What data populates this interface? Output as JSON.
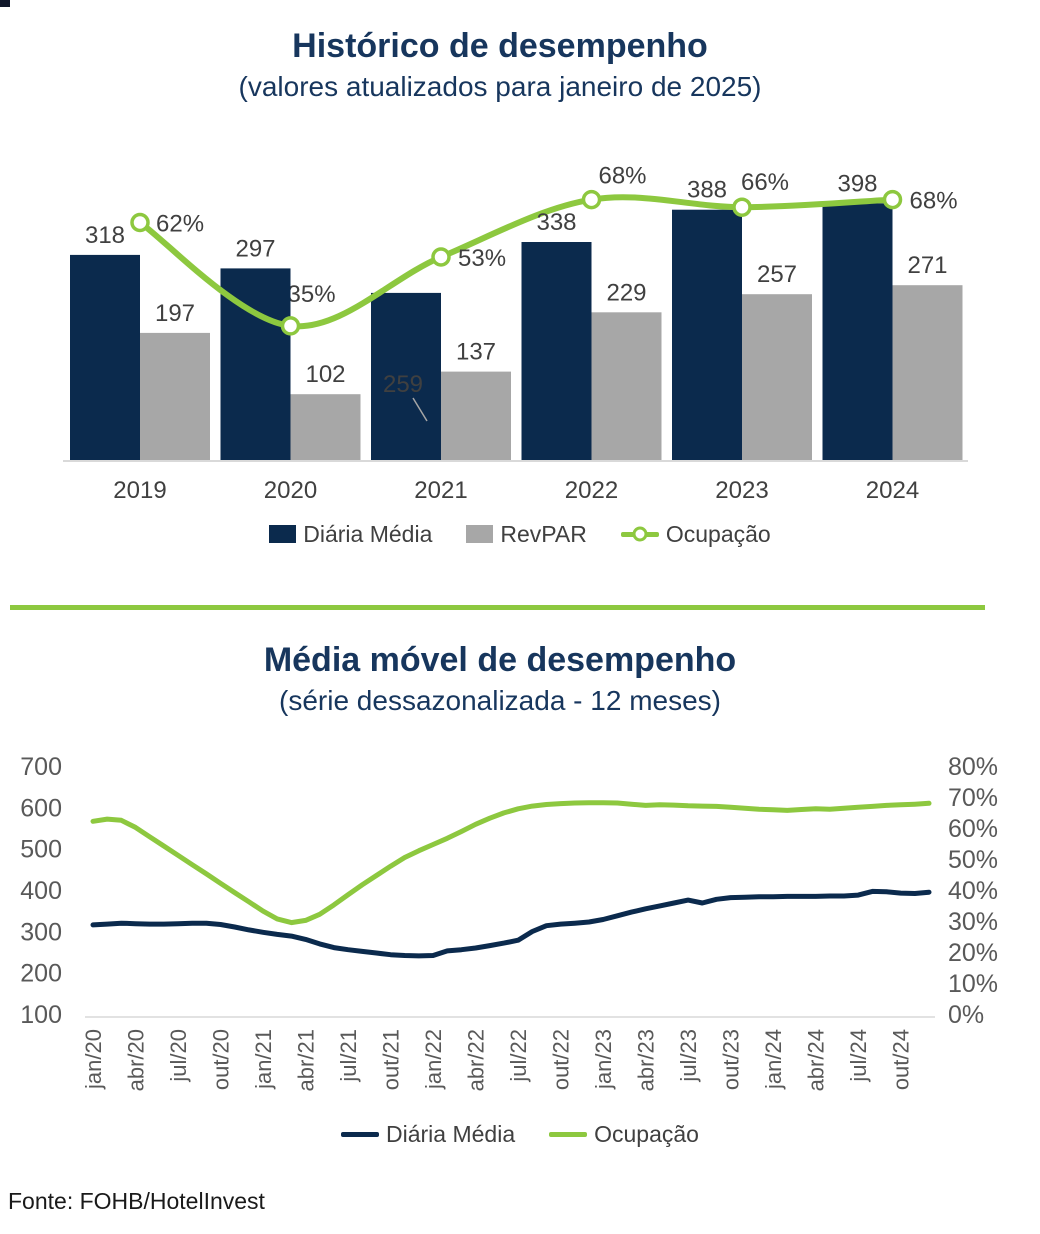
{
  "footer": {
    "text": "Fonte: FOHB/HotelInvest"
  },
  "colors": {
    "navy": "#0b2a4d",
    "gray": "#a7a7a7",
    "green": "#8dc83f",
    "title_navy": "#17365d",
    "data_label": "#404040",
    "tick_label": "#595959",
    "axis_line": "#d9d9d9"
  },
  "chart_data": [
    {
      "type": "bar",
      "title": "Histórico de desempenho",
      "subtitle": "(valores atualizados para janeiro de 2025)",
      "categories": [
        "2019",
        "2020",
        "2021",
        "2022",
        "2023",
        "2024"
      ],
      "series": [
        {
          "name": "Diária Média",
          "type": "bar",
          "axis": "left",
          "values": [
            318,
            297,
            259,
            338,
            388,
            398
          ]
        },
        {
          "name": "RevPAR",
          "type": "bar",
          "axis": "left",
          "values": [
            197,
            102,
            137,
            229,
            257,
            271
          ]
        },
        {
          "name": "Ocupação",
          "type": "line",
          "axis": "percent",
          "values": [
            62,
            35,
            53,
            68,
            66,
            68
          ],
          "label_suffix": "%"
        }
      ],
      "legend": [
        "Diária Média",
        "RevPAR",
        "Ocupação"
      ],
      "grid": false,
      "legend_position": "bottom"
    },
    {
      "type": "line",
      "title": "Média móvel de desempenho",
      "subtitle": "(série dessazonalizada - 12 meses)",
      "x_start": "jan/20",
      "x_frequency": "monthly",
      "x_tick_labels": [
        "jan/20",
        "abr/20",
        "jul/20",
        "out/20",
        "jan/21",
        "abr/21",
        "jul/21",
        "out/21",
        "jan/22",
        "abr/22",
        "jul/22",
        "out/22",
        "jan/23",
        "abr/23",
        "jul/23",
        "out/23",
        "jan/24",
        "abr/24",
        "jul/24",
        "out/24"
      ],
      "left_axis": {
        "min": 100,
        "max": 700,
        "ticks": [
          700,
          600,
          500,
          400,
          300,
          200,
          100
        ]
      },
      "right_axis": {
        "min": 0,
        "max": 80,
        "ticks": [
          "80%",
          "70%",
          "60%",
          "50%",
          "40%",
          "30%",
          "20%",
          "10%",
          "0%"
        ]
      },
      "series": [
        {
          "name": "Diária Média",
          "axis": "left",
          "values": [
            318,
            320,
            322,
            321,
            320,
            320,
            321,
            322,
            322,
            319,
            313,
            306,
            300,
            295,
            291,
            283,
            272,
            263,
            258,
            254,
            250,
            246,
            244,
            243,
            244,
            255,
            258,
            262,
            268,
            274,
            281,
            302,
            316,
            320,
            322,
            325,
            331,
            340,
            349,
            357,
            364,
            371,
            378,
            371,
            380,
            384,
            385,
            386,
            386,
            387,
            387,
            387,
            388,
            388,
            390,
            399,
            398,
            395,
            394,
            397
          ]
        },
        {
          "name": "Ocupação",
          "axis": "right",
          "values": [
            62.5,
            63.2,
            62.8,
            60.5,
            57.5,
            54.5,
            51.5,
            48.5,
            45.5,
            42.5,
            39.5,
            36.5,
            33.5,
            31.0,
            29.8,
            30.5,
            32.5,
            35.5,
            38.8,
            42.0,
            45.0,
            48.0,
            50.8,
            53.0,
            55.0,
            57.0,
            59.2,
            61.5,
            63.5,
            65.2,
            66.5,
            67.4,
            67.9,
            68.2,
            68.4,
            68.5,
            68.5,
            68.4,
            68.0,
            67.6,
            67.8,
            67.7,
            67.5,
            67.4,
            67.3,
            67.0,
            66.7,
            66.4,
            66.2,
            66.0,
            66.3,
            66.5,
            66.4,
            66.7,
            67.0,
            67.3,
            67.6,
            67.8,
            68.0,
            68.3
          ]
        }
      ],
      "legend": [
        "Diária Média",
        "Ocupação"
      ],
      "grid": false,
      "legend_position": "bottom"
    }
  ]
}
